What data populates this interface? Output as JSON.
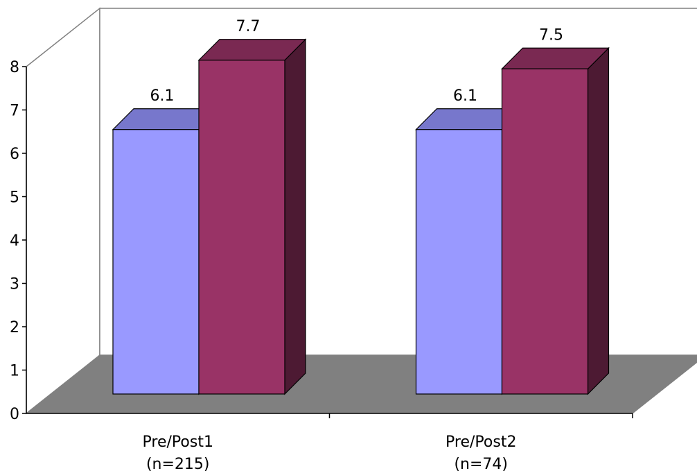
{
  "chart_data": {
    "type": "bar",
    "title": "",
    "xlabel": "",
    "ylabel": "",
    "ylim": [
      0,
      8
    ],
    "yticks": [
      "0",
      "1",
      "2",
      "3",
      "4",
      "5",
      "6",
      "7",
      "8"
    ],
    "categories": [
      [
        "Pre/Post1",
        "(n=215)"
      ],
      [
        "Pre/Post2",
        "(n=74)"
      ]
    ],
    "series": [
      {
        "values": [
          6.1,
          6.1
        ],
        "labels": [
          "6.1",
          "6.1"
        ]
      },
      {
        "values": [
          7.7,
          7.5
        ],
        "labels": [
          "7.7",
          "7.5"
        ]
      }
    ],
    "legend": "none",
    "grid": false,
    "colors": {
      "series1_front": "#9999ff",
      "series1_top": "#7777cc",
      "series1_side": "#5c5c99",
      "series2_front": "#993366",
      "series2_top": "#7a2952",
      "series2_side": "#4d1a33",
      "floor": "#808080",
      "wall": "#ffffff",
      "stroke": "#000000",
      "wall_stroke": "#808080"
    }
  }
}
